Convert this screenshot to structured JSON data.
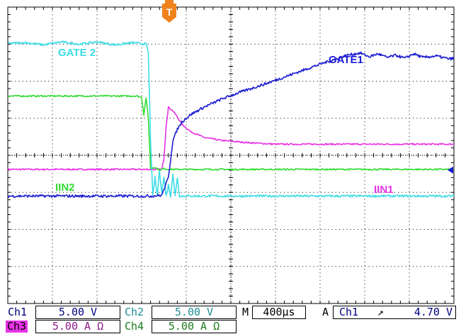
{
  "colors": {
    "ch1": "#1c1cd2",
    "ch2": "#3cdce6",
    "ch3": "#e632e6",
    "ch4": "#32dc32",
    "trigger": "#f0821e",
    "grid": "#000000",
    "text": "#00007f"
  },
  "chart_data": {
    "type": "line",
    "grid": true,
    "divisions": {
      "x": 10,
      "y": 8,
      "minor_per_div": 5
    },
    "trigger_marker": "T",
    "series": [
      {
        "name": "GATE1",
        "channel": "Ch1",
        "units": "V",
        "scale_per_div": 5.0,
        "x": [
          0.0,
          1.2,
          2.2,
          3.2,
          3.45,
          3.6,
          3.7,
          3.8,
          3.9,
          4.1,
          4.4,
          4.8,
          5.2,
          5.8,
          6.4,
          7.0,
          7.6,
          7.9,
          8.1,
          8.3,
          8.5,
          8.7,
          8.9,
          9.1,
          9.3,
          9.6,
          9.9,
          10.0
        ],
        "y": [
          -5.5,
          -5.5,
          -5.5,
          -5.5,
          -5.4,
          -3.0,
          2.0,
          3.5,
          4.5,
          5.5,
          6.5,
          7.6,
          8.5,
          9.7,
          11.0,
          12.3,
          13.5,
          13.8,
          13.3,
          13.7,
          13.2,
          13.5,
          13.1,
          13.7,
          13.2,
          13.4,
          13.0,
          13.1
        ],
        "noise": 0.18
      },
      {
        "name": "GATE 2",
        "channel": "Ch2",
        "units": "V",
        "scale_per_div": 5.0,
        "x": [
          0.0,
          0.4,
          0.8,
          1.2,
          1.6,
          2.0,
          2.4,
          2.8,
          3.1,
          3.15,
          3.2,
          3.25,
          3.3,
          3.35,
          3.4,
          3.45,
          3.5,
          3.55,
          3.6,
          3.65,
          3.7,
          3.75,
          3.8,
          3.85,
          3.9,
          4.0,
          6.0,
          10.0
        ],
        "y": [
          15.1,
          15.2,
          14.9,
          15.3,
          15.0,
          15.3,
          14.9,
          15.2,
          15.0,
          14.0,
          2.0,
          -5.5,
          -3.0,
          -5.5,
          -2.0,
          -5.0,
          -3.0,
          -5.5,
          -4.0,
          -5.5,
          -2.5,
          -5.5,
          -3.0,
          -5.5,
          -5.5,
          -5.5,
          -5.5,
          -5.5
        ],
        "noise": 0.15
      },
      {
        "name": "IIN1",
        "channel": "Ch3",
        "units": "A",
        "scale_per_div": 5.0,
        "x": [
          0.0,
          3.3,
          3.4,
          3.45,
          3.5,
          3.55,
          3.6,
          3.7,
          3.8,
          3.9,
          4.1,
          4.4,
          4.8,
          5.4,
          6.0,
          7.0,
          8.0,
          10.0
        ],
        "y": [
          -1.9,
          -1.9,
          -1.9,
          -1.9,
          -0.5,
          4.0,
          6.5,
          6.0,
          5.2,
          4.2,
          3.2,
          2.4,
          2.0,
          1.7,
          1.5,
          1.5,
          1.5,
          1.5
        ],
        "noise": 0.1
      },
      {
        "name": "IIN2",
        "channel": "Ch4",
        "units": "A",
        "scale_per_div": 5.0,
        "x": [
          0.0,
          1.0,
          2.0,
          2.9,
          3.0,
          3.05,
          3.1,
          3.15,
          3.2,
          3.3,
          3.4,
          3.5,
          3.6,
          3.7,
          4.0,
          10.0
        ],
        "y": [
          8.0,
          8.0,
          8.0,
          8.0,
          7.8,
          5.5,
          7.8,
          5.0,
          -1.8,
          -1.6,
          -2.0,
          -1.8,
          -1.9,
          -1.9,
          -1.9,
          -1.9
        ],
        "noise": 0.1
      }
    ]
  },
  "labels": {
    "gate2": "GATE 2",
    "gate1": "GATE1",
    "iin2": "IIN2",
    "iin1": "IIN1",
    "trigger": "T"
  },
  "status": {
    "ch1_label": "Ch1",
    "ch1_scale": "5.00 V",
    "ch2_label": "Ch2",
    "ch2_scale": "5.00 V",
    "ch3_label": "Ch3",
    "ch3_scale": "5.00 A Ω",
    "ch4_label": "Ch4",
    "ch4_scale": "5.00 A Ω",
    "timebase_label": "M",
    "timebase_value": "400µs",
    "trigger_mode": "A",
    "trigger_source": "Ch1",
    "trigger_slope": "↗",
    "trigger_level": "4.70 V"
  }
}
